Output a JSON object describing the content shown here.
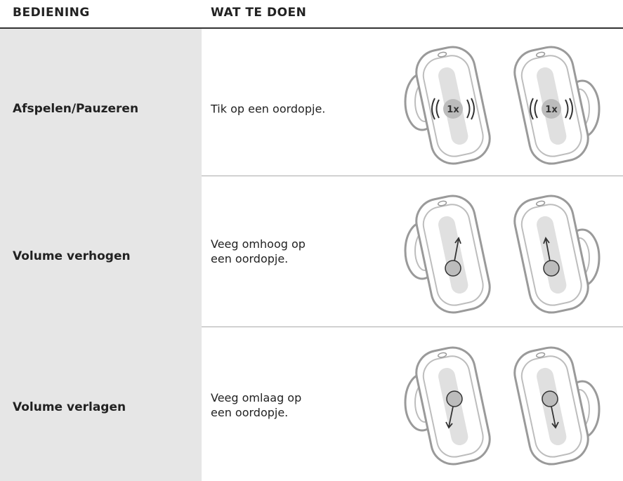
{
  "header": {
    "columns": [
      "BEDIENING",
      "WAT TE DOEN"
    ]
  },
  "table": {
    "rows": [
      {
        "control": "Afspelen/Pauzeren",
        "action": "Tik op een oordopje.",
        "icon_label": "1x"
      },
      {
        "control": "Volume verhogen",
        "action": "Veeg omhoog op\neen oordopje."
      },
      {
        "control": "Volume verlagen",
        "action": "Veeg omlaag op\neen oordopje."
      }
    ]
  }
}
